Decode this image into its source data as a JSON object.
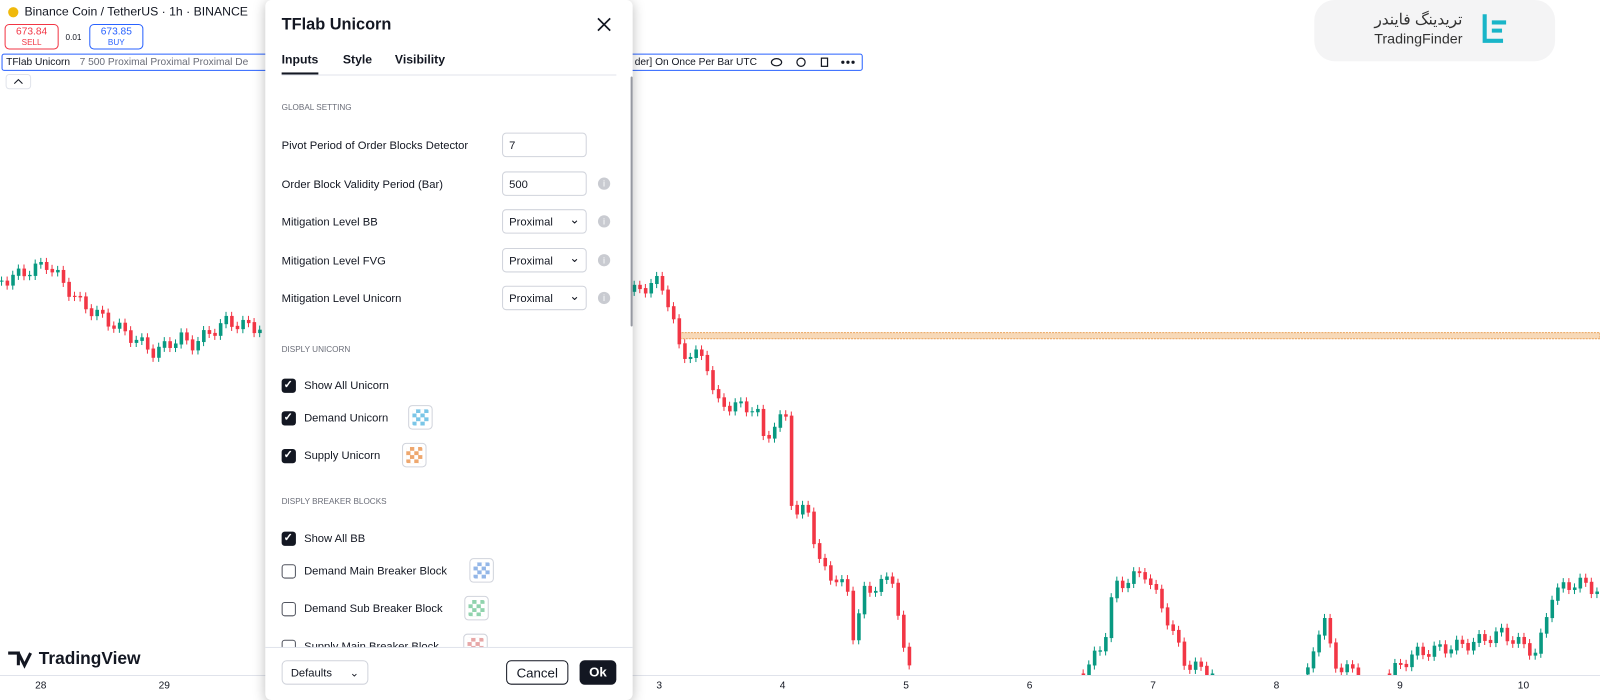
{
  "header": {
    "symbol": "Binance Coin / TetherUS · 1h · BINANCE",
    "sell_price": "673.84",
    "sell_label": "SELL",
    "spread": "0.01",
    "buy_price": "673.85",
    "buy_label": "BUY",
    "indicator_name": "TFlab Unicorn",
    "indicator_args": "7 500 Proximal Proximal Proximal De",
    "indicator_tail": "der] On Once Per Bar UTC"
  },
  "dialog": {
    "title": "TFlab Unicorn",
    "tabs": [
      "Inputs",
      "Style",
      "Visibility"
    ],
    "active_tab": 0,
    "global": {
      "heading": "GLOBAL SETTING",
      "fields": [
        {
          "label": "Pivot Period of Order Blocks Detector",
          "value": "7",
          "kind": "input",
          "info": false
        },
        {
          "label": "Order Block Validity Period (Bar)",
          "value": "500",
          "kind": "input",
          "info": true
        },
        {
          "label": "Mitigation Level BB",
          "value": "Proximal",
          "kind": "select",
          "info": true
        },
        {
          "label": "Mitigation Level FVG",
          "value": "Proximal",
          "kind": "select",
          "info": true
        },
        {
          "label": "Mitigation Level Unicorn",
          "value": "Proximal",
          "kind": "select",
          "info": true
        }
      ]
    },
    "unicorn": {
      "heading": "DISPLY UNICORN",
      "items": [
        {
          "label": "Show All Unicorn",
          "checked": true,
          "swatch": null
        },
        {
          "label": "Demand Unicorn",
          "checked": true,
          "swatch": "#4fb3e0"
        },
        {
          "label": "Supply Unicorn",
          "checked": true,
          "swatch": "#e98a3e"
        }
      ]
    },
    "breaker": {
      "heading": "DISPLY BREAKER BLOCKS",
      "items": [
        {
          "label": "Show All BB",
          "checked": true,
          "swatch": null
        },
        {
          "label": "Demand Main Breaker Block",
          "checked": false,
          "swatch": "#6f9ee0"
        },
        {
          "label": "Demand Sub Breaker Block",
          "checked": false,
          "swatch": "#6cc592"
        },
        {
          "label": "Supply Main Breaker Block",
          "checked": false,
          "swatch": "#e08a8a"
        }
      ]
    },
    "defaults": "Defaults",
    "cancel": "Cancel",
    "ok": "Ok"
  },
  "x_axis": [
    "28",
    "29",
    "3",
    "4",
    "5",
    "6",
    "7",
    "8",
    "9",
    "10"
  ],
  "branding": {
    "tradingview": "TradingView",
    "finder_fa": "تریدینگ فایندر",
    "finder_en": "TradingFinder"
  }
}
